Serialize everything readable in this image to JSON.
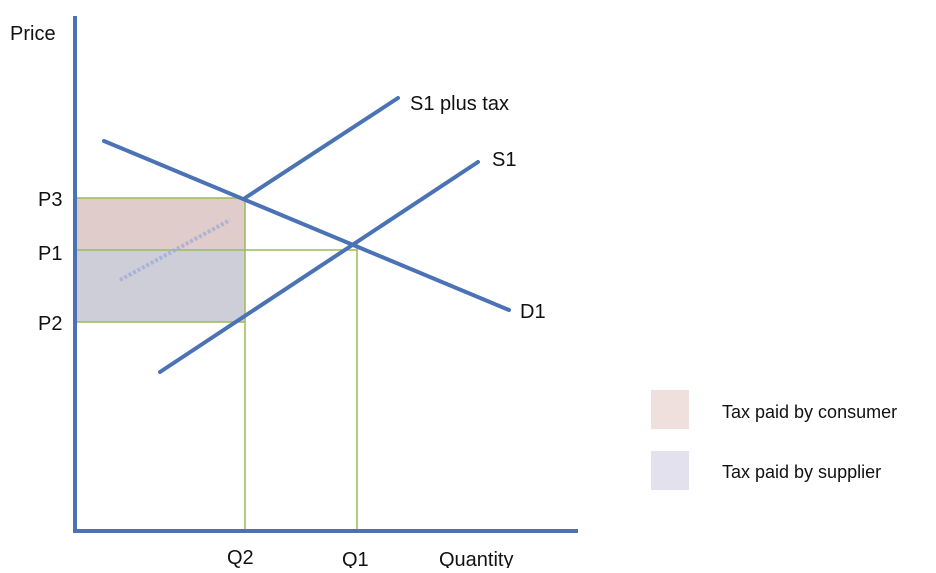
{
  "axes": {
    "y_label": "Price",
    "x_label": "Quantity"
  },
  "price_ticks": [
    "P3",
    "P1",
    "P2"
  ],
  "quantity_ticks": [
    "Q2",
    "Q1"
  ],
  "curves": {
    "supply_tax": "S1 plus tax",
    "supply": "S1",
    "demand": "D1"
  },
  "legend": [
    {
      "label": "Tax paid by consumer",
      "color": "#efe0de"
    },
    {
      "label": "Tax paid by supplier",
      "color": "#e3e1ee"
    }
  ],
  "colors": {
    "curve": "#4a72b5",
    "guide": "#9bbb59",
    "consumer_area": "#d9c3c2",
    "supplier_area": "#c6c5d2"
  }
}
